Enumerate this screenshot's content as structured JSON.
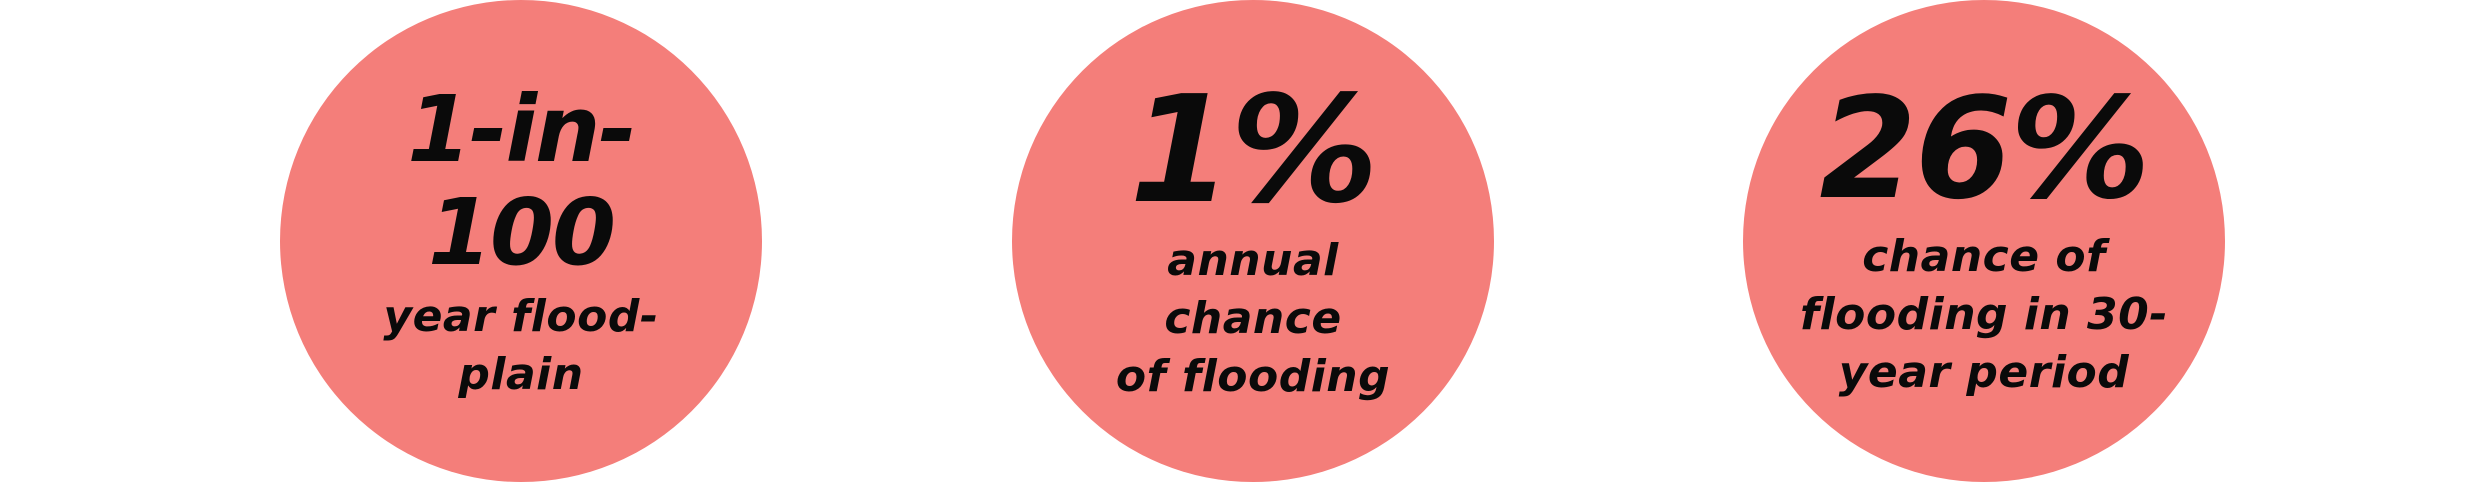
{
  "colors": {
    "circle_fill": "#f47e7a",
    "text": "#0a0a0a",
    "background": "#ffffff"
  },
  "stats": [
    {
      "big": "1-in-\n100",
      "small": "year  flood-\nplain"
    },
    {
      "big": "1%",
      "small": "annual\nchance\nof flooding"
    },
    {
      "big": "26%",
      "small": "chance of\nflooding in 30-\nyear period"
    }
  ]
}
